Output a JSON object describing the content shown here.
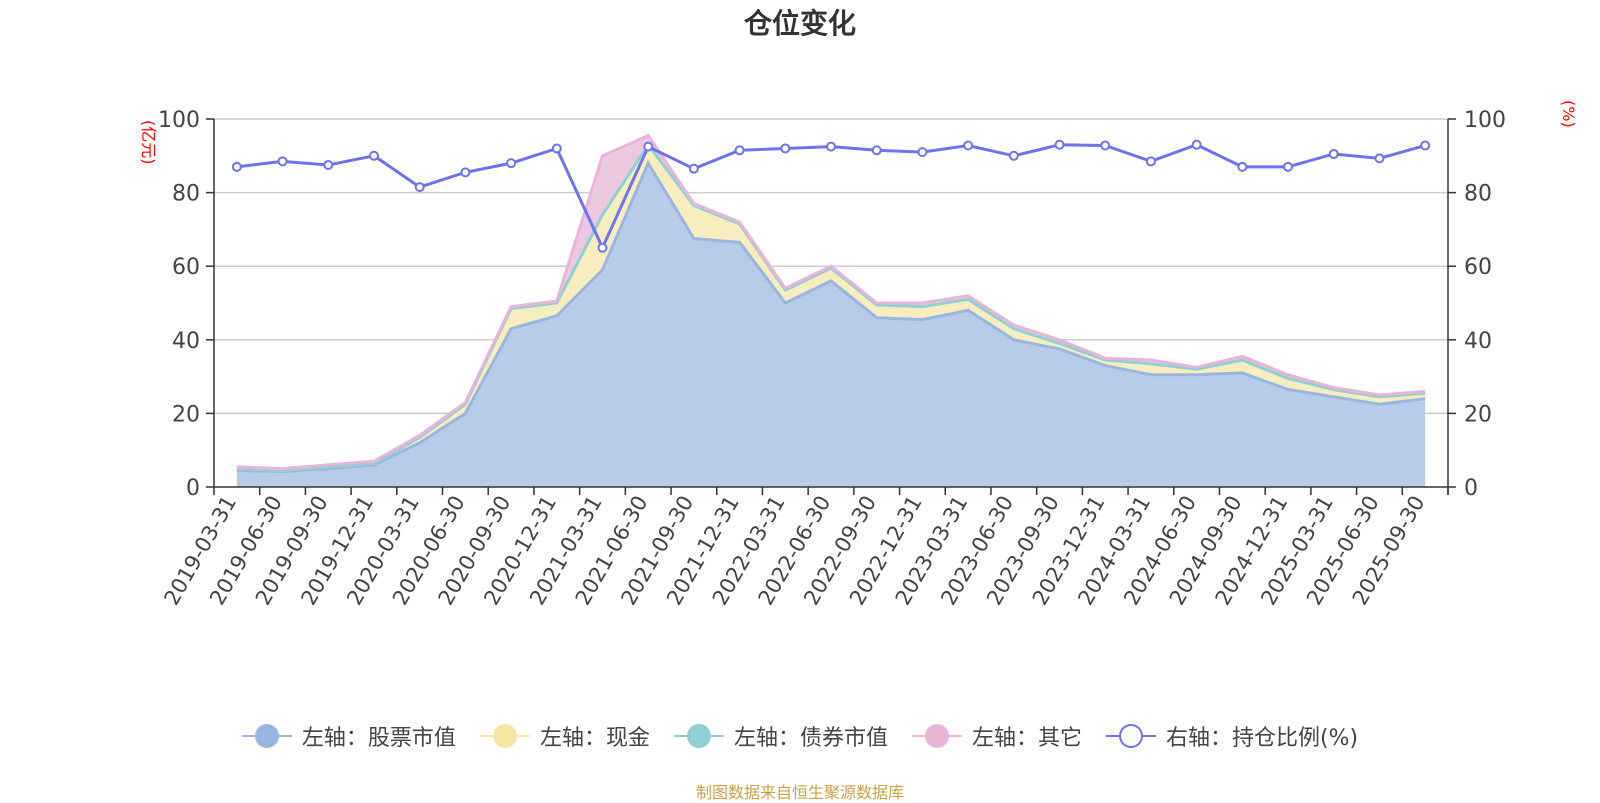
{
  "chart_data": {
    "type": "area",
    "title": "仓位变化",
    "left_axis_unit": "(亿元)",
    "right_axis_unit": "(%)",
    "ylim_left": [
      0,
      100
    ],
    "ylim_right": [
      0,
      100
    ],
    "yticks_left": [
      "0",
      "20",
      "40",
      "60",
      "80",
      "100"
    ],
    "yticks_right": [
      "0",
      "20",
      "40",
      "60",
      "80",
      "100"
    ],
    "grid": true,
    "legend_position": "bottom",
    "categories": [
      "2019-03-31",
      "2019-06-30",
      "2019-09-30",
      "2019-12-31",
      "2020-03-31",
      "2020-06-30",
      "2020-09-30",
      "2020-12-31",
      "2021-03-31",
      "2021-06-30",
      "2021-09-30",
      "2021-12-31",
      "2022-03-31",
      "2022-06-30",
      "2022-09-30",
      "2022-12-31",
      "2023-03-31",
      "2023-06-30",
      "2023-09-30",
      "2023-12-31",
      "2024-03-31",
      "2024-06-30",
      "2024-09-30",
      "2024-12-31",
      "2025-03-31",
      "2025-06-30",
      "2025-09-30"
    ],
    "series": [
      {
        "name": "左轴：股票市值",
        "axis": "left",
        "stack": true,
        "color": "#9ab6e0",
        "fill": "#b8cce9",
        "values": [
          4.5,
          4.2,
          5,
          6,
          12,
          20,
          43,
          46.5,
          59,
          88,
          67.5,
          66.5,
          50,
          56,
          46,
          45.5,
          48,
          40,
          37.5,
          33,
          30.5,
          30.5,
          31,
          26.5,
          24.5,
          22.5,
          24
        ]
      },
      {
        "name": "左轴：现金",
        "axis": "left",
        "stack": true,
        "color": "#f7e6a3",
        "fill": "#f8edbf",
        "values": [
          0.5,
          0.4,
          0.5,
          0.4,
          1.5,
          2.5,
          5.5,
          3.5,
          15,
          5,
          9,
          5,
          3.5,
          3.5,
          3.5,
          3.5,
          3,
          3,
          1.5,
          1.5,
          3,
          1.5,
          3.5,
          3,
          2,
          2,
          1.5
        ]
      },
      {
        "name": "左轴：债券市值",
        "axis": "left",
        "stack": true,
        "color": "#8fd0d4",
        "fill": "#b7e2e4",
        "values": [
          0,
          0,
          0,
          0,
          0,
          0,
          0,
          0,
          0,
          0,
          0,
          0,
          0,
          0,
          0,
          0,
          0,
          0,
          0,
          0,
          0,
          0,
          0,
          0,
          0,
          0,
          0
        ]
      },
      {
        "name": "左轴：其它",
        "axis": "left",
        "stack": true,
        "color": "#e8b4d8",
        "fill": "#ecc8e0",
        "values": [
          0.5,
          0.4,
          0.5,
          0.6,
          0.5,
          0.5,
          0.5,
          0.5,
          16,
          2.5,
          0.5,
          0.5,
          0.5,
          0.5,
          0.5,
          1,
          1,
          1,
          1,
          0.5,
          1,
          0.5,
          1,
          1,
          0.5,
          0.5,
          0.5
        ]
      },
      {
        "name": "右轴：持仓比例(%)",
        "axis": "right",
        "stack": false,
        "color": "#6f74ee",
        "fill": "none",
        "values": [
          87,
          88.5,
          87.5,
          90,
          81.5,
          85.5,
          88,
          92,
          65,
          92.5,
          86.5,
          91.5,
          92,
          92.5,
          91.5,
          91,
          92.8,
          90,
          93,
          92.8,
          88.5,
          93,
          87,
          87,
          90.5,
          89.3,
          92.8
        ]
      }
    ]
  },
  "source_note": "制图数据来自恒生聚源数据库"
}
